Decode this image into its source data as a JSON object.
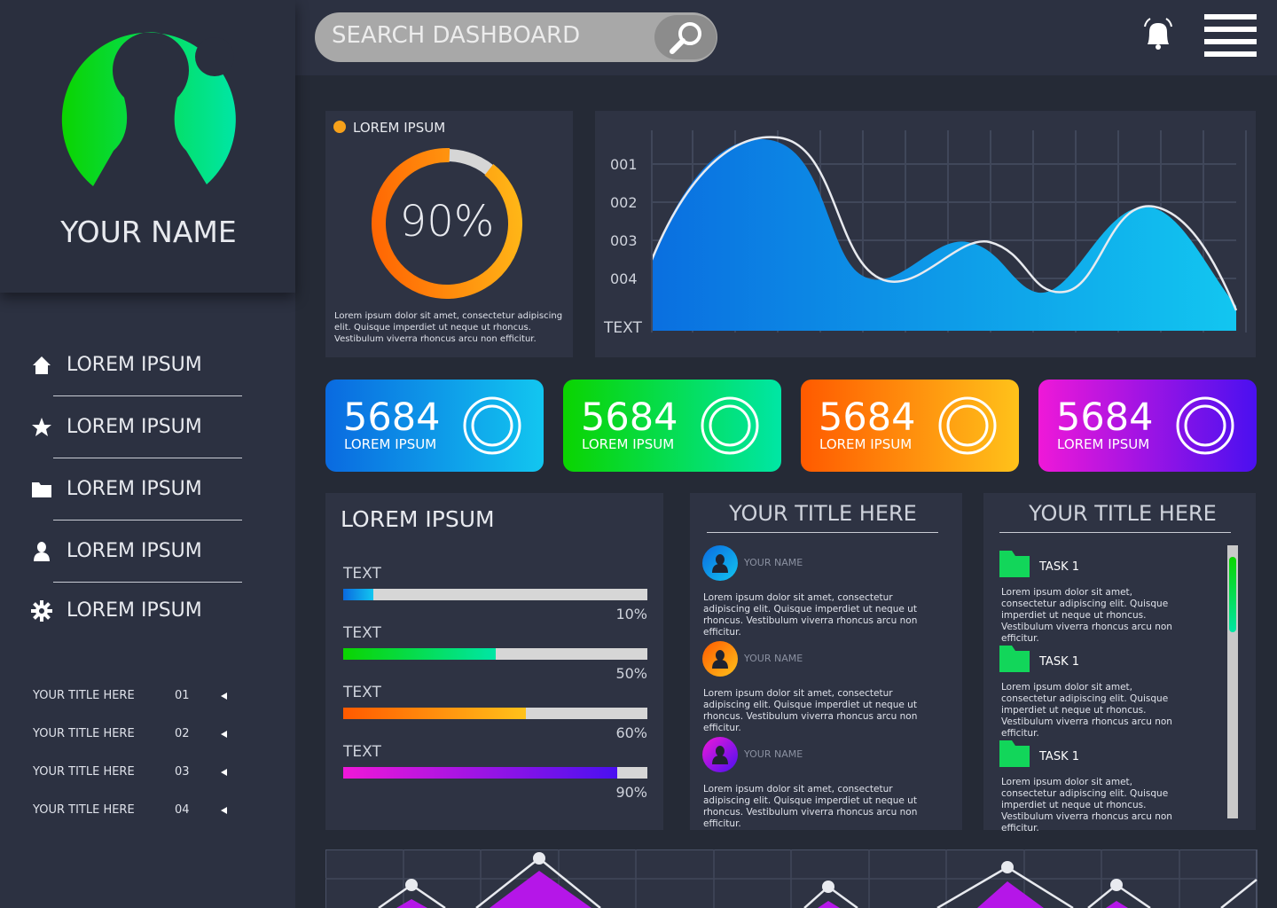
{
  "search": {
    "placeholder": "SEARCH DASHBOARD"
  },
  "profile": {
    "name": "YOUR NAME"
  },
  "nav": [
    "LOREM IPSUM",
    "LOREM IPSUM",
    "LOREM IPSUM",
    "LOREM IPSUM",
    "LOREM IPSUM"
  ],
  "sidebar_list": [
    {
      "title": "YOUR TITLE HERE",
      "number": "01"
    },
    {
      "title": "YOUR TITLE HERE",
      "number": "02"
    },
    {
      "title": "YOUR TITLE HERE",
      "number": "03"
    },
    {
      "title": "YOUR TITLE HERE",
      "number": "04"
    }
  ],
  "donut_card": {
    "legend": "LOREM IPSUM",
    "value": 90,
    "value_label": "90%",
    "text": "Lorem ipsum dolor sit amet, consectetur adipiscing elit. Quisque imperdiet ut neque ut rhoncus. Vestibulum viverra rhoncus arcu non efficitur."
  },
  "area_chart": {
    "y_labels": [
      "001",
      "002",
      "003",
      "004"
    ],
    "x_label": "TEXT"
  },
  "stats": [
    {
      "value": 5684,
      "label": "LOREM IPSUM"
    },
    {
      "value": 5684,
      "label": "LOREM IPSUM"
    },
    {
      "value": 5684,
      "label": "LOREM IPSUM"
    },
    {
      "value": 5684,
      "label": "LOREM IPSUM"
    }
  ],
  "progress": {
    "title": "LOREM IPSUM",
    "items": [
      {
        "label": "TEXT",
        "value": 10,
        "value_label": "10%"
      },
      {
        "label": "TEXT",
        "value": 50,
        "value_label": "50%"
      },
      {
        "label": "TEXT",
        "value": 60,
        "value_label": "60%"
      },
      {
        "label": "TEXT",
        "value": 90,
        "value_label": "90%"
      }
    ]
  },
  "messages": {
    "title": "YOUR TITLE HERE",
    "items": [
      {
        "name": "YOUR NAME",
        "text": "Lorem ipsum dolor sit amet, consectetur adipiscing elit. Quisque imperdiet ut neque ut rhoncus. Vestibulum viverra rhoncus arcu non efficitur."
      },
      {
        "name": "YOUR NAME",
        "text": "Lorem ipsum dolor sit amet, consectetur adipiscing elit. Quisque imperdiet ut neque ut rhoncus. Vestibulum viverra rhoncus arcu non efficitur."
      },
      {
        "name": "YOUR NAME",
        "text": "Lorem ipsum dolor sit amet, consectetur adipiscing elit. Quisque imperdiet ut neque ut rhoncus. Vestibulum viverra rhoncus arcu non efficitur."
      }
    ]
  },
  "tasks": {
    "title": "YOUR TITLE HERE",
    "items": [
      {
        "name": "TASK 1",
        "text": "Lorem ipsum dolor sit amet, consectetur adipiscing elit. Quisque imperdiet ut neque ut rhoncus. Vestibulum viverra rhoncus arcu non efficitur."
      },
      {
        "name": "TASK 1",
        "text": "Lorem ipsum dolor sit amet, consectetur adipiscing elit. Quisque imperdiet ut neque ut rhoncus. Vestibulum viverra rhoncus arcu non efficitur."
      },
      {
        "name": "TASK 1",
        "text": "Lorem ipsum dolor sit amet, consectetur adipiscing elit. Quisque imperdiet ut neque ut rhoncus. Vestibulum viverra rhoncus arcu non efficitur."
      }
    ]
  }
}
